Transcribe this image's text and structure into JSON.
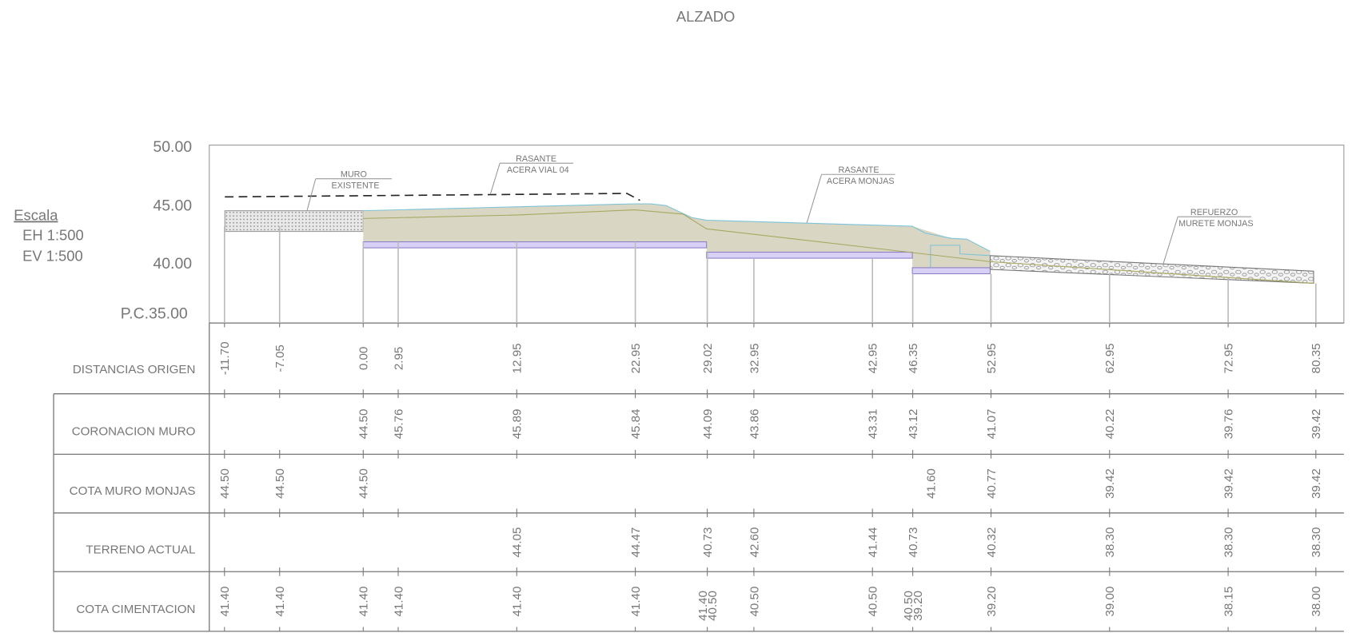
{
  "title": "ALZADO",
  "scale": {
    "label": "Escala",
    "eh": "EH  1:500",
    "ev": "EV  1:500"
  },
  "elevation_axis": {
    "ticks": [
      "50.00",
      "45.00",
      "40.00"
    ],
    "datum": "P.C.35.00"
  },
  "annotations": [
    {
      "lines": [
        "MURO",
        "EXISTENTE"
      ]
    },
    {
      "lines": [
        "RASANTE",
        "ACERA VIAL 04"
      ]
    },
    {
      "lines": [
        "RASANTE",
        "ACERA MONJAS"
      ]
    },
    {
      "lines": [
        "REFUERZO",
        "MURETE MONJAS"
      ]
    }
  ],
  "table": {
    "rows": [
      {
        "label": "DISTANCIAS ORIGEN",
        "values": [
          "-11.70",
          "-7.05",
          "0.00",
          "2.95",
          "12.95",
          "22.95",
          "29.02",
          "32.95",
          "42.95",
          "46.35",
          "52.95",
          "62.95",
          "72.95",
          "80.35"
        ]
      },
      {
        "label": "CORONACION MURO",
        "values": [
          null,
          null,
          "44.50",
          "45.76",
          "45.89",
          "45.84",
          "44.09",
          "43.86",
          "43.31",
          "43.12",
          "41.07",
          "40.22",
          "39.76",
          "39.42"
        ]
      },
      {
        "label": "COTA MURO MONJAS",
        "values": [
          "44.50",
          "44.50",
          "44.50",
          null,
          null,
          null,
          null,
          null,
          null,
          "41.60",
          "40.77",
          "39.42",
          "39.42",
          "39.42"
        ]
      },
      {
        "label": "TERRENO ACTUAL",
        "values": [
          null,
          null,
          null,
          null,
          "44.05",
          "44.47",
          "40.73",
          "42.60",
          "41.44",
          "40.73",
          "40.32",
          "38.30",
          "38.30",
          "38.30"
        ]
      },
      {
        "label": "COTA CIMENTACION",
        "values": [
          "41.40",
          "41.40",
          "41.40",
          "41.40",
          "41.40",
          "41.40",
          [
            "41.40",
            "40.50"
          ],
          "40.50",
          "40.50",
          [
            "40.50",
            "39.20"
          ],
          "39.20",
          "39.00",
          "38.15",
          "38.00"
        ]
      }
    ]
  }
}
